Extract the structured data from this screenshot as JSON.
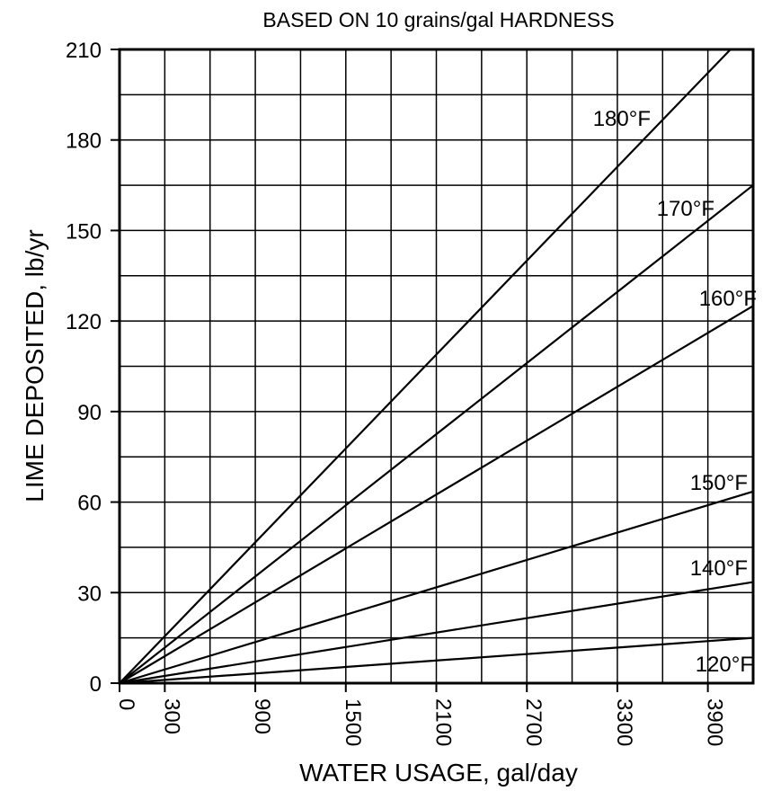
{
  "chart_data": {
    "type": "line",
    "title": "BASED ON 10 grains/gal HARDNESS",
    "xlabel": "WATER USAGE, gal/day",
    "ylabel": "LIME DEPOSITED, lb/yr",
    "xlim": [
      0,
      4200
    ],
    "ylim": [
      0,
      210
    ],
    "x_tick_labels": [
      "0",
      "300",
      "900",
      "1500",
      "2100",
      "2700",
      "3300",
      "3900"
    ],
    "x_ticks": [
      0,
      300,
      900,
      1500,
      2100,
      2700,
      3300,
      3900
    ],
    "y_tick_labels": [
      "0",
      "30",
      "60",
      "90",
      "120",
      "150",
      "180",
      "210"
    ],
    "y_ticks": [
      0,
      30,
      60,
      90,
      120,
      150,
      180,
      210
    ],
    "grid": true,
    "x_grid_step": 300,
    "y_grid_step": 15,
    "series": [
      {
        "name": "120°F",
        "x": [
          0,
          4200
        ],
        "y": [
          0,
          15
        ]
      },
      {
        "name": "140°F",
        "x": [
          0,
          4200
        ],
        "y": [
          0,
          33.5
        ]
      },
      {
        "name": "150°F",
        "x": [
          0,
          4200
        ],
        "y": [
          0,
          63.5
        ]
      },
      {
        "name": "160°F",
        "x": [
          0,
          4200
        ],
        "y": [
          0,
          125
        ]
      },
      {
        "name": "170°F",
        "x": [
          0,
          4200
        ],
        "y": [
          0,
          165
        ]
      },
      {
        "name": "180°F",
        "x": [
          0,
          4050
        ],
        "y": [
          0,
          210
        ]
      }
    ],
    "series_color": "#000000"
  }
}
